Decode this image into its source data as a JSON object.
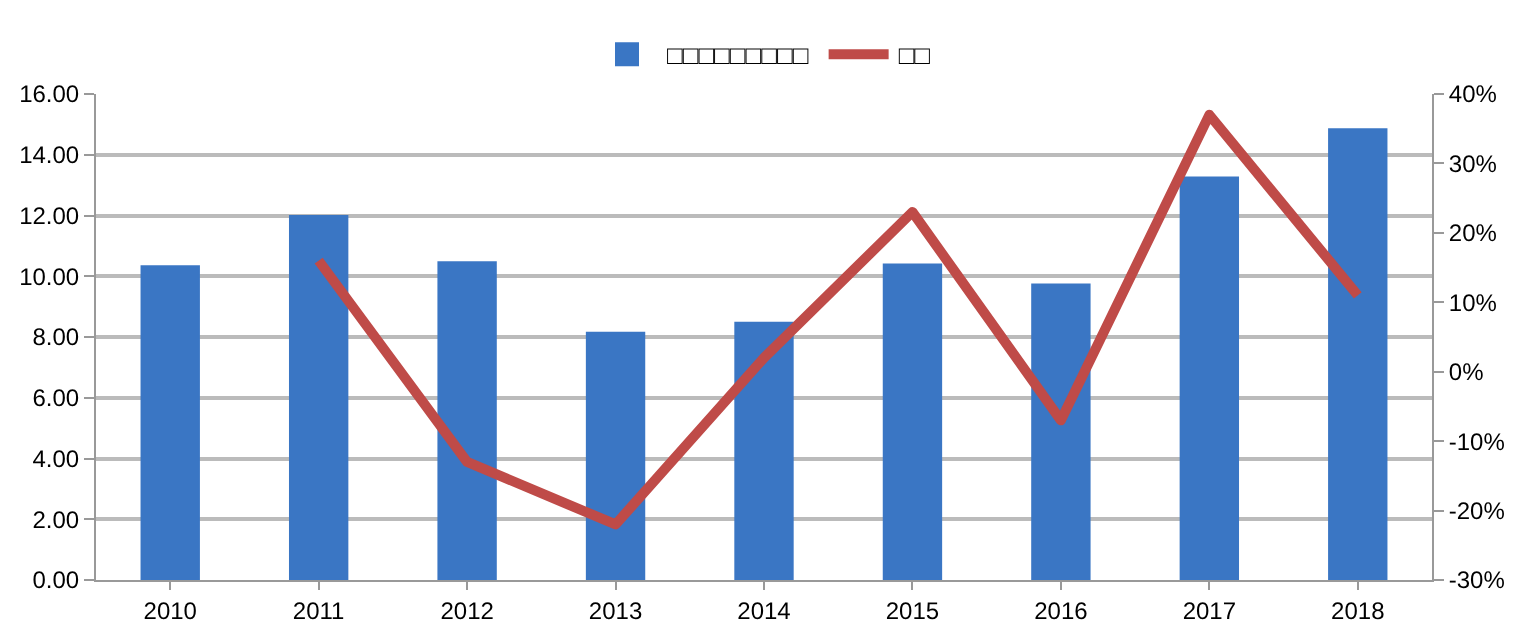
{
  "chart_data": {
    "type": "bar",
    "categories": [
      "2010",
      "2011",
      "2012",
      "2013",
      "2014",
      "2015",
      "2016",
      "2017",
      "2018"
    ],
    "series": [
      {
        "name": "□□□□□□□□□",
        "color": "#3a76c4",
        "values": [
          10.36,
          12.02,
          10.49,
          8.17,
          8.5,
          10.42,
          9.76,
          13.28,
          14.87
        ]
      },
      {
        "name": "□□",
        "type": "line",
        "axis": "y2",
        "color": "#bf4b48",
        "values": [
          null,
          16,
          -13,
          -22,
          2,
          23,
          -7,
          37,
          11
        ]
      }
    ],
    "ylim": [
      0,
      16
    ],
    "yticks": [
      {
        "value": 0,
        "label": "0.00"
      },
      {
        "value": 2,
        "label": "2.00"
      },
      {
        "value": 4,
        "label": "4.00"
      },
      {
        "value": 6,
        "label": "6.00"
      },
      {
        "value": 8,
        "label": "8.00"
      },
      {
        "value": 10,
        "label": "10.00"
      },
      {
        "value": 12,
        "label": "12.00"
      },
      {
        "value": 14,
        "label": "14.00"
      },
      {
        "value": 16,
        "label": "16.00"
      }
    ],
    "y2lim": [
      -30,
      40
    ],
    "y2ticks": [
      {
        "value": -30,
        "label": "-30%"
      },
      {
        "value": -20,
        "label": "-20%"
      },
      {
        "value": -10,
        "label": "-10%"
      },
      {
        "value": 0,
        "label": "0%"
      },
      {
        "value": 10,
        "label": "10%"
      },
      {
        "value": 20,
        "label": "20%"
      },
      {
        "value": 30,
        "label": "30%"
      },
      {
        "value": 40,
        "label": "40%"
      }
    ],
    "grid": "y",
    "legend": "top",
    "marker": "none",
    "line_style": "solid"
  }
}
